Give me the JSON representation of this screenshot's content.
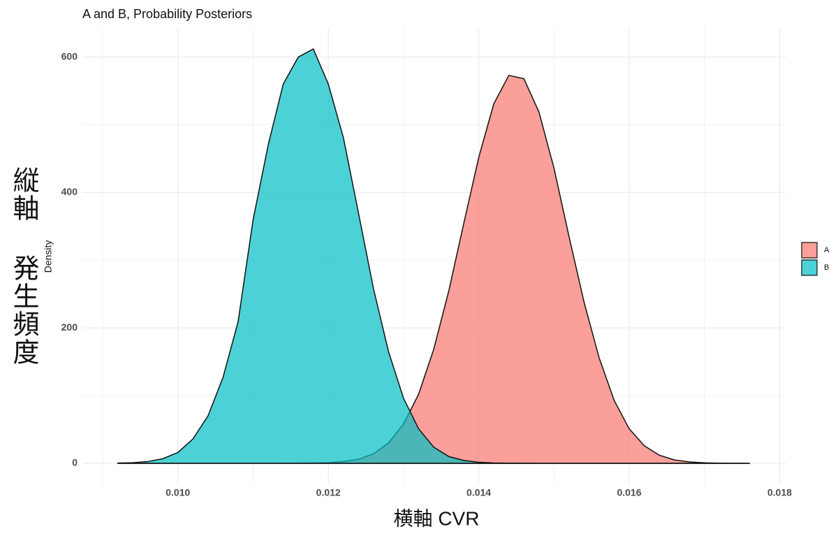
{
  "chart_data": {
    "type": "density",
    "title": "A and B, Probability Posteriors",
    "x_label": "横軸  CVR",
    "y_label": "縦軸 発生頻度",
    "y_sublabel": "Density",
    "x": [
      0.0092,
      0.0094,
      0.0096,
      0.0098,
      0.01,
      0.0102,
      0.0104,
      0.0106,
      0.0108,
      0.011,
      0.0112,
      0.0114,
      0.0116,
      0.0118,
      0.012,
      0.0122,
      0.0124,
      0.0126,
      0.0128,
      0.013,
      0.0132,
      0.0134,
      0.0136,
      0.0138,
      0.014,
      0.0142,
      0.0144,
      0.0146,
      0.0148,
      0.015,
      0.0152,
      0.0154,
      0.0156,
      0.0158,
      0.016,
      0.0162,
      0.0164,
      0.0166,
      0.0168,
      0.017,
      0.0172,
      0.0174,
      0.0176
    ],
    "series": [
      {
        "name": "A",
        "color": "#F8766D",
        "values": [
          0,
          0,
          0,
          0,
          0,
          0,
          0,
          0,
          0,
          0,
          0,
          0.1,
          0.3,
          0.5,
          0.9,
          2.5,
          6,
          14,
          30,
          58,
          102,
          168,
          254,
          354,
          452,
          531,
          573,
          568,
          519,
          436,
          335,
          238,
          156,
          93,
          51,
          26,
          12,
          5,
          2,
          0.7,
          0.2,
          0.1,
          0
        ]
      },
      {
        "name": "B",
        "color": "#00BFC4",
        "values": [
          0.3,
          0.9,
          2.6,
          6.8,
          16,
          36,
          70,
          127,
          209,
          360,
          470,
          560,
          600,
          612,
          560,
          481,
          370,
          258,
          165,
          96,
          51,
          24,
          10,
          4.2,
          1.5,
          0.5,
          0.2,
          0.1,
          0,
          0,
          0,
          0,
          0,
          0,
          0,
          0,
          0,
          0,
          0,
          0,
          0,
          0,
          0
        ]
      }
    ],
    "xlim": [
      0.00873,
      0.01808
    ],
    "ylim": [
      -31,
      643
    ],
    "xticks": [
      {
        "value": 0.01,
        "label": "0.010"
      },
      0.012,
      0.014,
      0.016,
      0.018
    ],
    "yticks": [
      0,
      200,
      400,
      600
    ],
    "grid": true,
    "legend": "right"
  }
}
